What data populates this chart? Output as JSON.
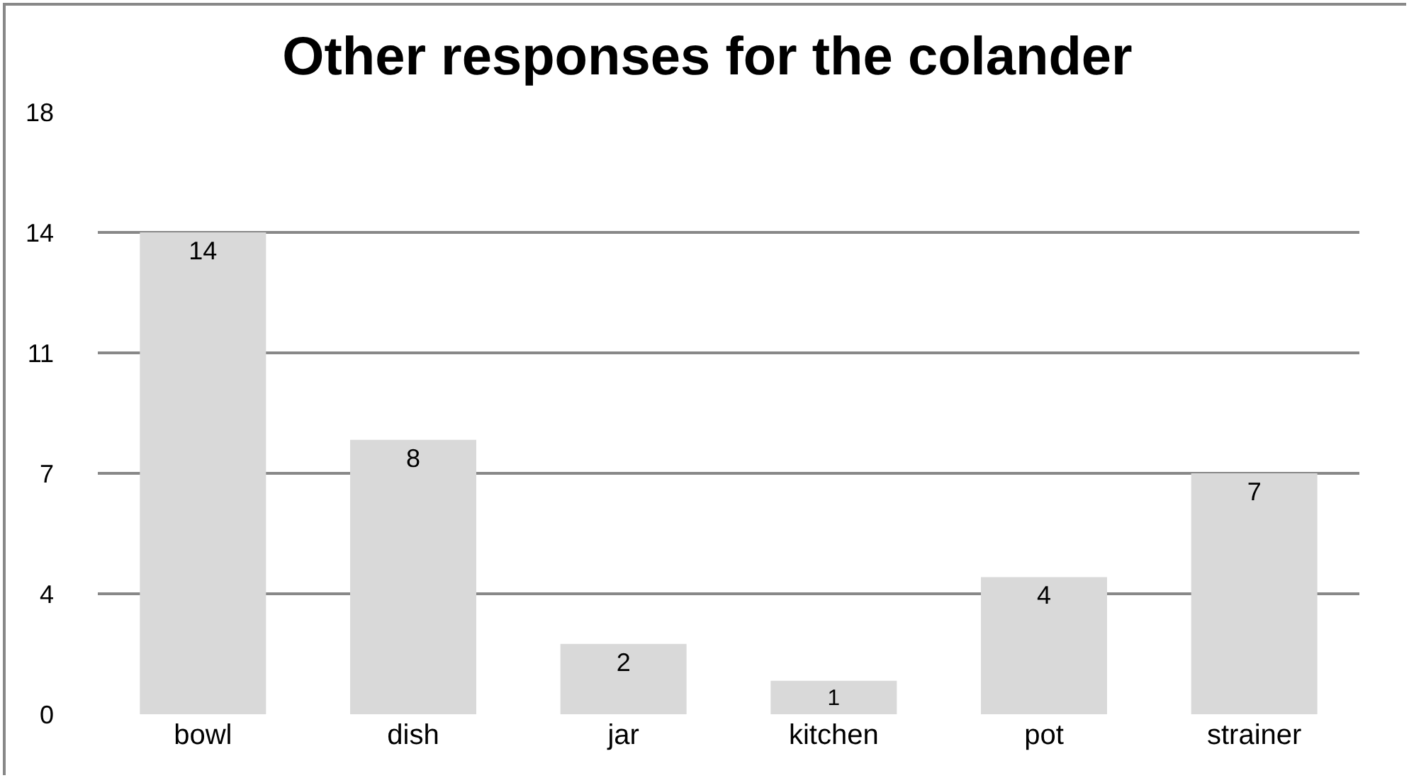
{
  "chart_data": {
    "type": "bar",
    "title": "Other responses for the colander",
    "categories": [
      "bowl",
      "dish",
      "jar",
      "kitchen",
      "pot",
      "strainer"
    ],
    "values": [
      14.4,
      8.2,
      2.1,
      1.0,
      4.1,
      7.2
    ],
    "value_labels": [
      "14",
      "8",
      "2",
      "1",
      "4",
      "7"
    ],
    "color": "#d9d9d9",
    "ylim": [
      0,
      18
    ],
    "yticks": [
      0,
      {
        "value": 3.6,
        "label": "4"
      },
      {
        "value": 7.2,
        "label": "7"
      },
      {
        "value": 10.8,
        "label": "11"
      },
      {
        "value": 14.4,
        "label": "14"
      },
      18
    ],
    "grid": "y",
    "legend": false
  }
}
